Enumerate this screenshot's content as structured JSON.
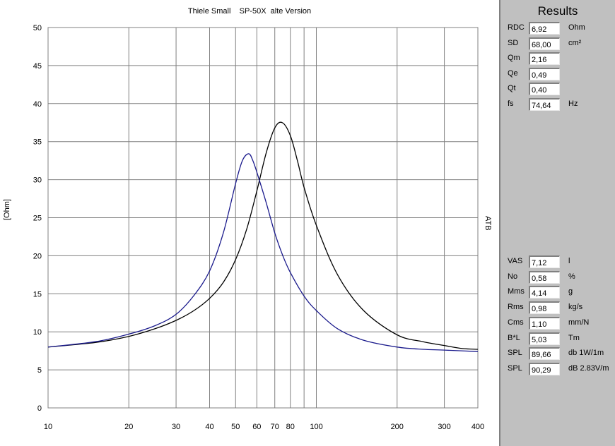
{
  "chart_data": {
    "type": "line",
    "title": "Thiele Small    SP-50X  alte Version",
    "xlabel": "",
    "ylabel": "[Ohm]",
    "right_label": "ATB",
    "x_scale": "log",
    "xlim": [
      10,
      400
    ],
    "ylim": [
      0,
      50
    ],
    "x_ticks": [
      10,
      20,
      30,
      40,
      50,
      60,
      70,
      80,
      90,
      100,
      200,
      300,
      400
    ],
    "x_tick_labels": [
      "10",
      "20",
      "30",
      "40",
      "50",
      "60",
      "70",
      "80",
      "",
      "100",
      "200",
      "300",
      "400"
    ],
    "y_ticks": [
      0,
      5,
      10,
      15,
      20,
      25,
      30,
      35,
      40,
      45,
      50
    ],
    "y_tick_labels": [
      "0",
      "5",
      "10",
      "15",
      "20",
      "25",
      "30",
      "35",
      "40",
      "45",
      "50"
    ],
    "grid": true,
    "series": [
      {
        "color": "#000000",
        "x": [
          10,
          15,
          20,
          25,
          30,
          35,
          40,
          45,
          50,
          55,
          60,
          65,
          70,
          74.64,
          80,
          85,
          90,
          100,
          120,
          150,
          200,
          250,
          300,
          350,
          400
        ],
        "y": [
          8.0,
          8.6,
          9.4,
          10.4,
          11.5,
          12.8,
          14.4,
          16.5,
          19.5,
          23.5,
          28.5,
          33.5,
          36.8,
          37.5,
          35.8,
          32.5,
          29.0,
          24.0,
          17.5,
          12.8,
          9.6,
          8.7,
          8.2,
          7.8,
          7.7
        ]
      },
      {
        "color": "#1a1a8c",
        "x": [
          10,
          15,
          20,
          25,
          30,
          35,
          40,
          45,
          50,
          53,
          56,
          58,
          60,
          65,
          70,
          75,
          80,
          90,
          100,
          120,
          150,
          200,
          250,
          300,
          400
        ],
        "y": [
          8.0,
          8.7,
          9.7,
          10.8,
          12.3,
          14.8,
          18.0,
          23.0,
          29.5,
          32.5,
          33.4,
          32.5,
          31.0,
          27.0,
          23.0,
          20.0,
          17.8,
          14.7,
          12.8,
          10.4,
          8.9,
          8.0,
          7.7,
          7.6,
          7.4
        ]
      }
    ]
  },
  "results": {
    "title": "Results",
    "group1": [
      {
        "label": "RDC",
        "value": "6,92",
        "unit": "Ohm"
      },
      {
        "label": "SD",
        "value": "68,00",
        "unit": "cm²"
      },
      {
        "label": "Qm",
        "value": "2,16",
        "unit": ""
      },
      {
        "label": "Qe",
        "value": "0,49",
        "unit": ""
      },
      {
        "label": "Qt",
        "value": "0,40",
        "unit": ""
      },
      {
        "label": "fs",
        "value": "74,64",
        "unit": "Hz"
      }
    ],
    "group2": [
      {
        "label": "VAS",
        "value": "7,12",
        "unit": "l"
      },
      {
        "label": "No",
        "value": "0,58",
        "unit": "%"
      },
      {
        "label": "Mms",
        "value": "4,14",
        "unit": "g"
      },
      {
        "label": "Rms",
        "value": "0,98",
        "unit": "kg/s"
      },
      {
        "label": "Cms",
        "value": "1,10",
        "unit": "mm/N"
      },
      {
        "label": "B*L",
        "value": "5,03",
        "unit": "Tm"
      },
      {
        "label": "SPL",
        "value": "89,66",
        "unit": "db 1W/1m"
      },
      {
        "label": "SPL",
        "value": "90,29",
        "unit": "dB 2.83V/m"
      }
    ]
  }
}
